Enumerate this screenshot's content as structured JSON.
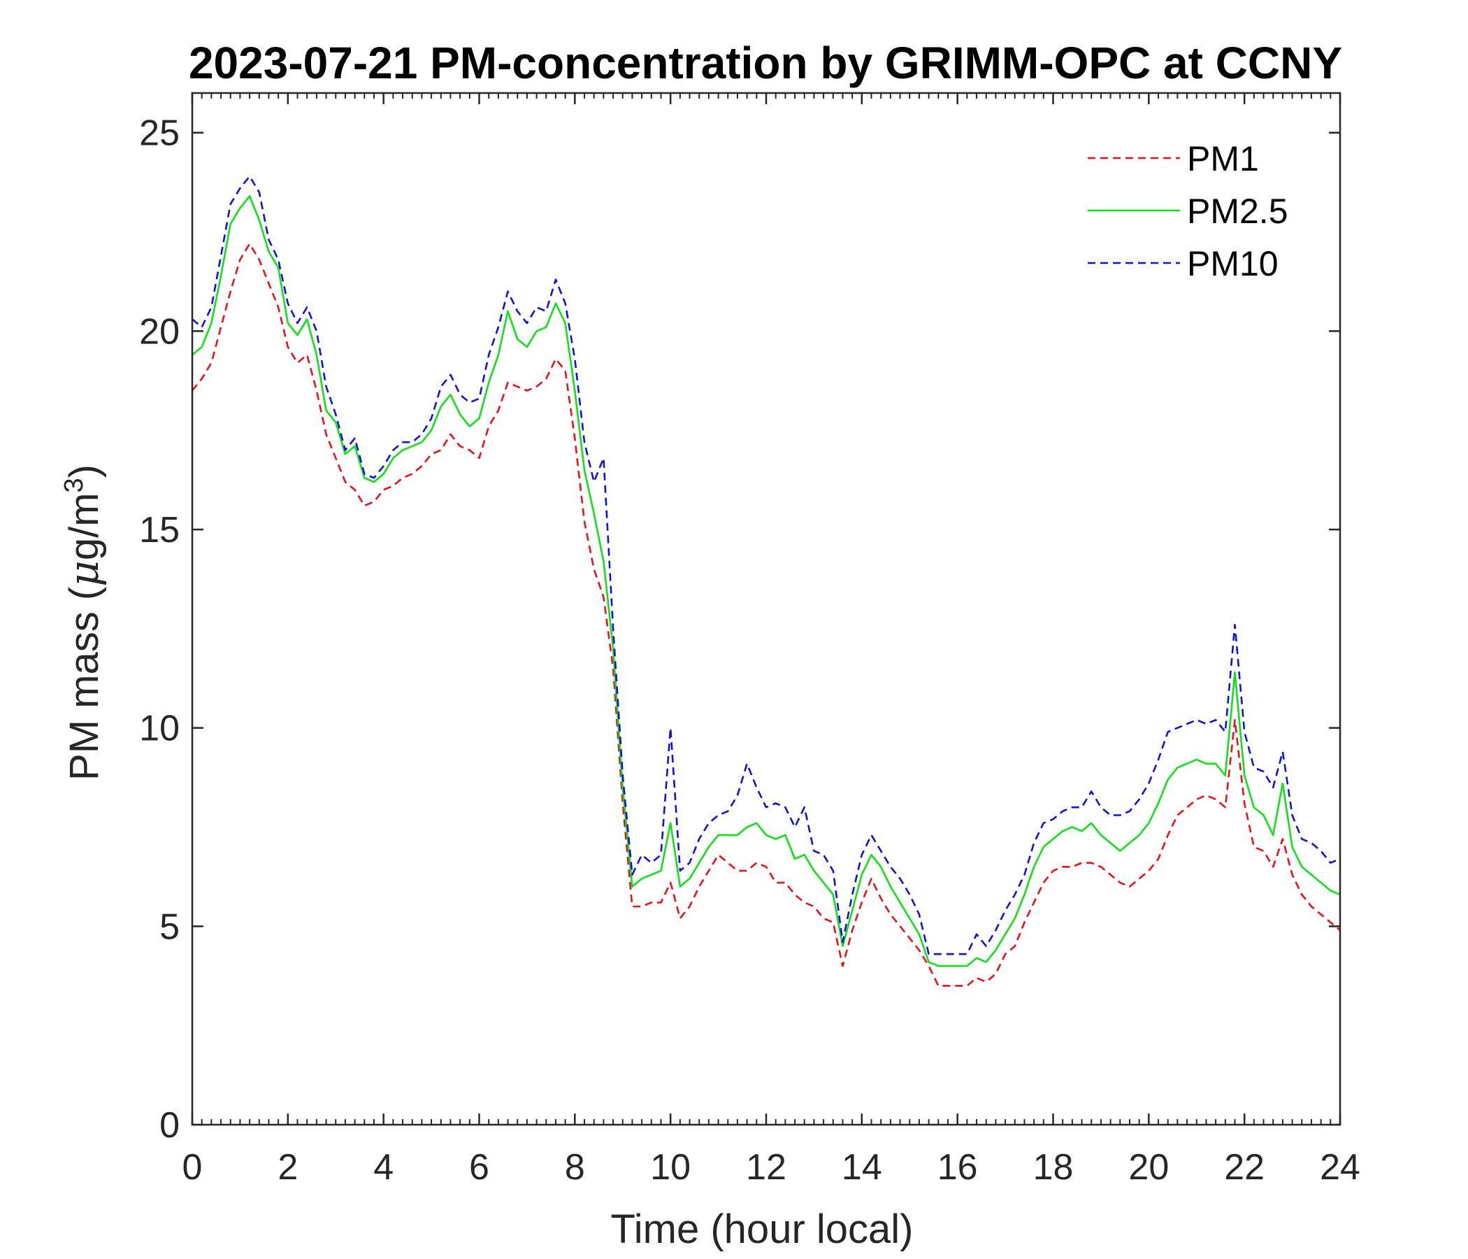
{
  "chart_data": {
    "type": "line",
    "title": "2023-07-21 PM-concentration by GRIMM-OPC at CCNY",
    "xlabel": "Time (hour local)",
    "ylabel_prefix": "PM mass (",
    "ylabel_unit_mu": "μ",
    "ylabel_unit_rest": "g/m",
    "ylabel_superscript": "3",
    "ylabel_suffix": ")",
    "xlim": [
      0,
      24
    ],
    "ylim": [
      0,
      26
    ],
    "xticks": [
      0,
      2,
      4,
      6,
      8,
      10,
      12,
      14,
      16,
      18,
      20,
      22,
      24
    ],
    "xtick_labels": [
      "0",
      "2",
      "4",
      "6",
      "8",
      "10",
      "12",
      "14",
      "16",
      "18",
      "20",
      "22",
      "24"
    ],
    "yticks": [
      0,
      5,
      10,
      15,
      20,
      25
    ],
    "ytick_labels": [
      "0",
      "5",
      "10",
      "15",
      "20",
      "25"
    ],
    "minor_x_step": 0.2,
    "legend_position": "top-right",
    "series": [
      {
        "name": "PM1",
        "color": "#e8111a",
        "style": "dashed",
        "x": [
          0,
          0.2,
          0.4,
          0.6,
          0.8,
          1.0,
          1.2,
          1.4,
          1.6,
          1.8,
          2.0,
          2.2,
          2.4,
          2.6,
          2.8,
          3.0,
          3.2,
          3.4,
          3.6,
          3.8,
          4.0,
          4.2,
          4.4,
          4.6,
          4.8,
          5.0,
          5.2,
          5.4,
          5.6,
          5.8,
          6.0,
          6.2,
          6.4,
          6.6,
          6.8,
          7.0,
          7.2,
          7.4,
          7.6,
          7.8,
          8.0,
          8.2,
          8.4,
          8.6,
          8.8,
          9.0,
          9.2,
          9.4,
          9.6,
          9.8,
          10.0,
          10.2,
          10.4,
          10.6,
          10.8,
          11.0,
          11.2,
          11.4,
          11.6,
          11.8,
          12.0,
          12.2,
          12.4,
          12.6,
          12.8,
          13.0,
          13.2,
          13.4,
          13.6,
          13.8,
          14.0,
          14.2,
          14.4,
          14.6,
          14.8,
          15.0,
          15.2,
          15.4,
          15.6,
          15.8,
          16.0,
          16.2,
          16.4,
          16.6,
          16.8,
          17.0,
          17.2,
          17.4,
          17.6,
          17.8,
          18.0,
          18.2,
          18.4,
          18.6,
          18.8,
          19.0,
          19.2,
          19.4,
          19.6,
          19.8,
          20.0,
          20.2,
          20.4,
          20.6,
          20.8,
          21.0,
          21.2,
          21.4,
          21.6,
          21.8,
          22.0,
          22.2,
          22.4,
          22.6,
          22.8,
          23.0,
          23.2,
          23.4,
          23.6,
          23.8,
          24.0
        ],
        "y": [
          18.5,
          18.8,
          19.2,
          20.1,
          21.0,
          21.8,
          22.2,
          21.8,
          21.2,
          20.6,
          19.6,
          19.2,
          19.4,
          18.5,
          17.4,
          16.8,
          16.2,
          16.0,
          15.6,
          15.7,
          16.0,
          16.1,
          16.3,
          16.4,
          16.6,
          16.9,
          17.0,
          17.4,
          17.1,
          17.0,
          16.8,
          17.6,
          18.0,
          18.7,
          18.6,
          18.5,
          18.6,
          18.8,
          19.3,
          19.0,
          17.3,
          15.2,
          14.0,
          13.3,
          11.5,
          8.1,
          5.5,
          5.5,
          5.6,
          5.6,
          6.1,
          5.2,
          5.5,
          6.0,
          6.4,
          6.8,
          6.6,
          6.4,
          6.4,
          6.6,
          6.5,
          6.1,
          6.1,
          5.8,
          5.6,
          5.5,
          5.2,
          5.1,
          4.0,
          4.9,
          5.6,
          6.2,
          5.7,
          5.3,
          5.0,
          4.7,
          4.4,
          4.0,
          3.5,
          3.5,
          3.5,
          3.5,
          3.7,
          3.6,
          3.8,
          4.3,
          4.5,
          5.1,
          5.6,
          6.1,
          6.4,
          6.5,
          6.5,
          6.6,
          6.6,
          6.5,
          6.3,
          6.1,
          6.0,
          6.2,
          6.4,
          6.7,
          7.3,
          7.8,
          8.0,
          8.2,
          8.3,
          8.2,
          8.0,
          10.2,
          8.1,
          7.0,
          6.9,
          6.5,
          7.2,
          6.3,
          5.8,
          5.5,
          5.3,
          5.1,
          4.9
        ]
      },
      {
        "name": "PM2.5",
        "color": "#12e01a",
        "style": "solid",
        "x": [
          0,
          0.2,
          0.4,
          0.6,
          0.8,
          1.0,
          1.2,
          1.4,
          1.6,
          1.8,
          2.0,
          2.2,
          2.4,
          2.6,
          2.8,
          3.0,
          3.2,
          3.4,
          3.6,
          3.8,
          4.0,
          4.2,
          4.4,
          4.6,
          4.8,
          5.0,
          5.2,
          5.4,
          5.6,
          5.8,
          6.0,
          6.2,
          6.4,
          6.6,
          6.8,
          7.0,
          7.2,
          7.4,
          7.6,
          7.8,
          8.0,
          8.2,
          8.4,
          8.6,
          8.8,
          9.0,
          9.2,
          9.4,
          9.6,
          9.8,
          10.0,
          10.2,
          10.4,
          10.6,
          10.8,
          11.0,
          11.2,
          11.4,
          11.6,
          11.8,
          12.0,
          12.2,
          12.4,
          12.6,
          12.8,
          13.0,
          13.2,
          13.4,
          13.6,
          13.8,
          14.0,
          14.2,
          14.4,
          14.6,
          14.8,
          15.0,
          15.2,
          15.4,
          15.6,
          15.8,
          16.0,
          16.2,
          16.4,
          16.6,
          16.8,
          17.0,
          17.2,
          17.4,
          17.6,
          17.8,
          18.0,
          18.2,
          18.4,
          18.6,
          18.8,
          19.0,
          19.2,
          19.4,
          19.6,
          19.8,
          20.0,
          20.2,
          20.4,
          20.6,
          20.8,
          21.0,
          21.2,
          21.4,
          21.6,
          21.8,
          22.0,
          22.2,
          22.4,
          22.6,
          22.8,
          23.0,
          23.2,
          23.4,
          23.6,
          23.8,
          24.0
        ],
        "y": [
          19.4,
          19.6,
          20.2,
          21.4,
          22.7,
          23.1,
          23.4,
          22.8,
          22.0,
          21.6,
          20.2,
          19.9,
          20.3,
          19.4,
          18.0,
          17.7,
          16.9,
          17.1,
          16.3,
          16.2,
          16.4,
          16.8,
          17.0,
          17.1,
          17.2,
          17.5,
          18.1,
          18.4,
          17.9,
          17.6,
          17.8,
          18.7,
          19.4,
          20.5,
          19.8,
          19.6,
          20.0,
          20.1,
          20.7,
          20.2,
          18.5,
          16.5,
          15.4,
          14.2,
          12.0,
          8.5,
          6.0,
          6.2,
          6.3,
          6.4,
          7.6,
          6.0,
          6.2,
          6.6,
          7.0,
          7.3,
          7.3,
          7.3,
          7.5,
          7.6,
          7.3,
          7.2,
          7.3,
          6.7,
          6.8,
          6.4,
          6.1,
          5.8,
          4.5,
          5.4,
          6.3,
          6.8,
          6.5,
          6.0,
          5.6,
          5.2,
          4.8,
          4.1,
          4.0,
          4.0,
          4.0,
          4.0,
          4.2,
          4.1,
          4.4,
          4.8,
          5.2,
          5.8,
          6.5,
          7.0,
          7.2,
          7.4,
          7.5,
          7.4,
          7.6,
          7.3,
          7.1,
          6.9,
          7.1,
          7.3,
          7.6,
          8.1,
          8.7,
          9.0,
          9.1,
          9.2,
          9.1,
          9.1,
          8.8,
          11.4,
          8.8,
          8.0,
          7.8,
          7.3,
          8.6,
          7.0,
          6.5,
          6.3,
          6.1,
          5.9,
          5.8
        ]
      },
      {
        "name": "PM10",
        "color": "#1212d6",
        "style": "dashed",
        "x": [
          0,
          0.2,
          0.4,
          0.6,
          0.8,
          1.0,
          1.2,
          1.4,
          1.6,
          1.8,
          2.0,
          2.2,
          2.4,
          2.6,
          2.8,
          3.0,
          3.2,
          3.4,
          3.6,
          3.8,
          4.0,
          4.2,
          4.4,
          4.6,
          4.8,
          5.0,
          5.2,
          5.4,
          5.6,
          5.8,
          6.0,
          6.2,
          6.4,
          6.6,
          6.8,
          7.0,
          7.2,
          7.4,
          7.6,
          7.8,
          8.0,
          8.2,
          8.4,
          8.6,
          8.8,
          9.0,
          9.2,
          9.4,
          9.6,
          9.8,
          10.0,
          10.2,
          10.4,
          10.6,
          10.8,
          11.0,
          11.2,
          11.4,
          11.6,
          11.8,
          12.0,
          12.2,
          12.4,
          12.6,
          12.8,
          13.0,
          13.2,
          13.4,
          13.6,
          13.8,
          14.0,
          14.2,
          14.4,
          14.6,
          14.8,
          15.0,
          15.2,
          15.4,
          15.6,
          15.8,
          16.0,
          16.2,
          16.4,
          16.6,
          16.8,
          17.0,
          17.2,
          17.4,
          17.6,
          17.8,
          18.0,
          18.2,
          18.4,
          18.6,
          18.8,
          19.0,
          19.2,
          19.4,
          19.6,
          19.8,
          20.0,
          20.2,
          20.4,
          20.6,
          20.8,
          21.0,
          21.2,
          21.4,
          21.6,
          21.8,
          22.0,
          22.2,
          22.4,
          22.6,
          22.8,
          23.0,
          23.2,
          23.4,
          23.6,
          23.8,
          24.0
        ],
        "y": [
          20.3,
          20.1,
          20.6,
          21.9,
          23.2,
          23.6,
          23.9,
          23.5,
          22.3,
          21.8,
          20.7,
          20.2,
          20.6,
          20.0,
          18.6,
          17.9,
          17.0,
          17.3,
          16.4,
          16.3,
          16.6,
          17.0,
          17.2,
          17.2,
          17.4,
          17.8,
          18.6,
          18.9,
          18.4,
          18.2,
          18.3,
          19.4,
          20.1,
          21.0,
          20.5,
          20.2,
          20.6,
          20.5,
          21.3,
          20.7,
          19.3,
          17.2,
          16.2,
          16.8,
          12.5,
          8.8,
          6.3,
          6.8,
          6.6,
          6.8,
          10.0,
          6.4,
          6.6,
          7.2,
          7.6,
          7.8,
          7.9,
          8.3,
          9.1,
          8.5,
          8.0,
          8.1,
          8.0,
          7.5,
          8.0,
          6.9,
          6.8,
          6.4,
          4.6,
          5.8,
          6.8,
          7.3,
          6.9,
          6.5,
          6.2,
          5.8,
          5.3,
          4.3,
          4.3,
          4.3,
          4.3,
          4.3,
          4.8,
          4.5,
          4.9,
          5.4,
          5.8,
          6.3,
          7.1,
          7.6,
          7.7,
          7.9,
          8.0,
          8.0,
          8.4,
          8.0,
          7.8,
          7.8,
          7.9,
          8.2,
          8.6,
          9.2,
          9.9,
          10.0,
          10.1,
          10.2,
          10.1,
          10.2,
          9.9,
          12.6,
          9.9,
          9.0,
          8.9,
          8.5,
          9.4,
          7.8,
          7.2,
          7.1,
          6.9,
          6.6,
          6.7
        ]
      }
    ]
  }
}
